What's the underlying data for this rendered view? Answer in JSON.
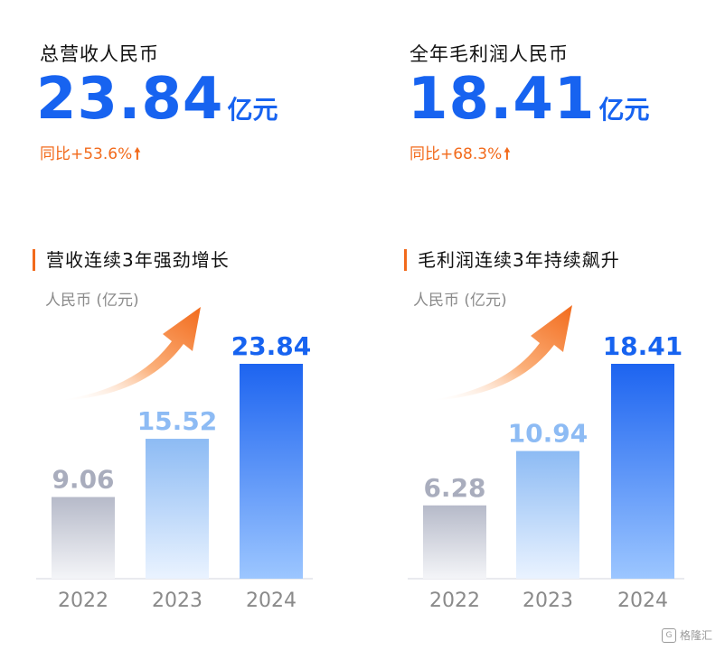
{
  "kpis": [
    {
      "label": "总营收人民币",
      "value": "23.84",
      "unit": "亿元",
      "growth": "同比+53.6%",
      "arrow": "🠕"
    },
    {
      "label": "全年毛利润人民币",
      "value": "18.41",
      "unit": "亿元",
      "growth": "同比+68.3%",
      "arrow": "🠕"
    }
  ],
  "chart_data": [
    {
      "type": "bar",
      "title": "营收连续3年强劲增长",
      "ylabel": "人民币 (亿元)",
      "categories": [
        "2022",
        "2023",
        "2024"
      ],
      "values": [
        9.06,
        15.52,
        23.84
      ],
      "value_labels": [
        "9.06",
        "15.52",
        "23.84"
      ],
      "ylim": [
        0,
        26
      ],
      "grid": false,
      "colors": {
        "gray": "#b6bac9",
        "light_blue": "#8dbbf4",
        "blue": "#1d64f0",
        "highlight_label": "#1763f0",
        "muted_label": "#a9adbd"
      }
    },
    {
      "type": "bar",
      "title": "毛利润连续3年持续飙升",
      "ylabel": "人民币 (亿元)",
      "categories": [
        "2022",
        "2023",
        "2024"
      ],
      "values": [
        6.28,
        10.94,
        18.41
      ],
      "value_labels": [
        "6.28",
        "10.94",
        "18.41"
      ],
      "ylim": [
        0,
        20.1
      ],
      "grid": false,
      "colors": {
        "gray": "#b6bac9",
        "light_blue": "#8dbbf4",
        "blue": "#1d64f0",
        "highlight_label": "#1763f0",
        "muted_label": "#a9adbd"
      }
    }
  ],
  "watermark": {
    "icon": "G",
    "text": "格隆汇"
  }
}
